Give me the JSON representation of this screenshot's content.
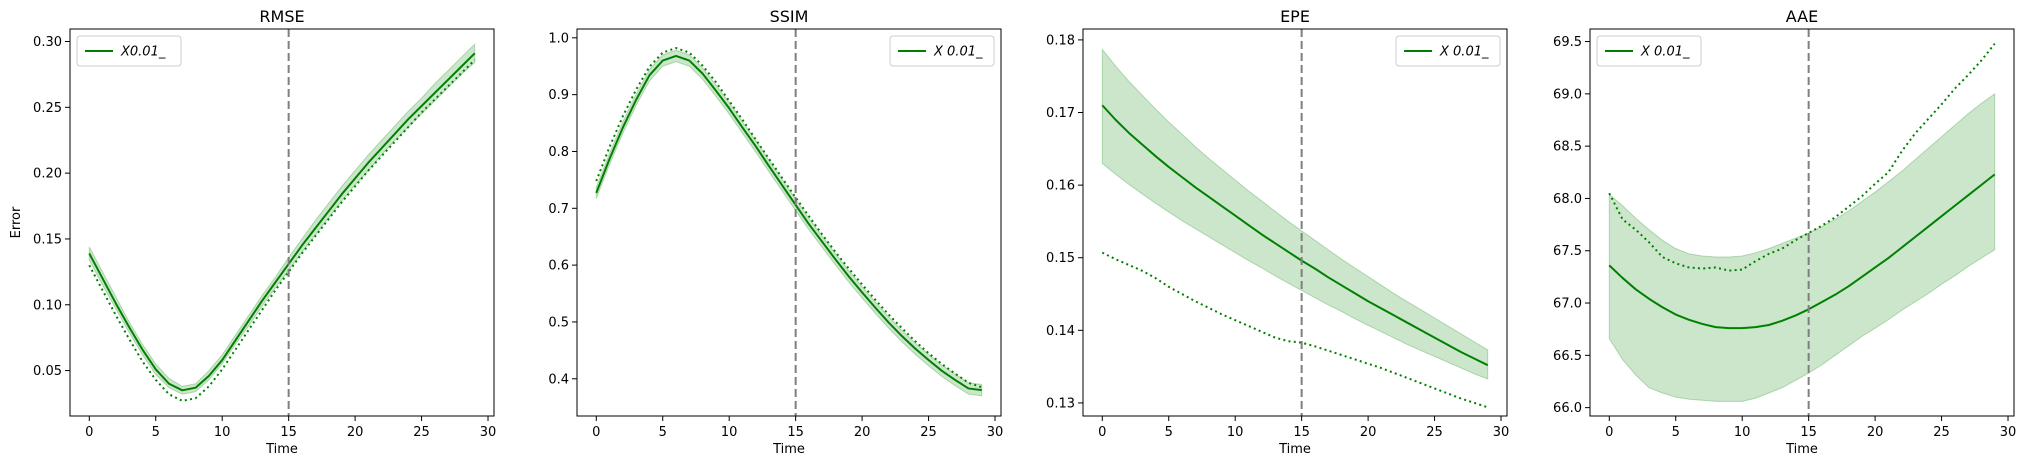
{
  "chart_data": [
    {
      "type": "line",
      "title": "RMSE",
      "xlabel": "Time",
      "ylabel": "Error",
      "xlim": [
        -1.45,
        30.45
      ],
      "ylim": [
        0.0155,
        0.3095
      ],
      "xticks": [
        0,
        5,
        10,
        15,
        20,
        25,
        30
      ],
      "xtick_labels": [
        "0",
        "5",
        "10",
        "15",
        "20",
        "25",
        "30"
      ],
      "yticks": [
        0.05,
        0.1,
        0.15,
        0.2,
        0.25,
        0.3
      ],
      "ytick_labels": [
        "0.05",
        "0.10",
        "0.15",
        "0.20",
        "0.25",
        "0.30"
      ],
      "vline_x": 15,
      "legend": {
        "label": "X0.01_",
        "position": "upper-left"
      },
      "x": [
        0,
        1,
        2,
        3,
        4,
        5,
        6,
        7,
        8,
        9,
        10,
        11,
        12,
        13,
        14,
        15,
        16,
        17,
        18,
        19,
        20,
        21,
        22,
        23,
        24,
        25,
        26,
        27,
        28,
        29
      ],
      "series": [
        {
          "style": "solid",
          "values": [
            0.139,
            0.12,
            0.101,
            0.083,
            0.066,
            0.051,
            0.04,
            0.035,
            0.037,
            0.046,
            0.058,
            0.073,
            0.088,
            0.103,
            0.117,
            0.131,
            0.145,
            0.158,
            0.171,
            0.184,
            0.196,
            0.208,
            0.219,
            0.23,
            0.241,
            0.251,
            0.261,
            0.271,
            0.281,
            0.291
          ]
        },
        {
          "style": "dotted",
          "values": [
            0.13,
            0.111,
            0.092,
            0.074,
            0.057,
            0.043,
            0.032,
            0.027,
            0.029,
            0.038,
            0.051,
            0.066,
            0.081,
            0.096,
            0.111,
            0.125,
            0.139,
            0.152,
            0.165,
            0.178,
            0.19,
            0.202,
            0.213,
            0.224,
            0.235,
            0.246,
            0.256,
            0.266,
            0.276,
            0.286
          ]
        }
      ],
      "band": {
        "lower": [
          0.134,
          0.115,
          0.097,
          0.079,
          0.062,
          0.047,
          0.037,
          0.032,
          0.034,
          0.043,
          0.055,
          0.07,
          0.084,
          0.099,
          0.113,
          0.126,
          0.14,
          0.153,
          0.166,
          0.179,
          0.191,
          0.202,
          0.214,
          0.225,
          0.235,
          0.245,
          0.255,
          0.265,
          0.275,
          0.284
        ],
        "upper": [
          0.144,
          0.125,
          0.106,
          0.087,
          0.07,
          0.055,
          0.044,
          0.038,
          0.04,
          0.05,
          0.062,
          0.077,
          0.092,
          0.107,
          0.121,
          0.136,
          0.15,
          0.164,
          0.177,
          0.19,
          0.202,
          0.214,
          0.225,
          0.236,
          0.247,
          0.257,
          0.268,
          0.278,
          0.288,
          0.298
        ]
      }
    },
    {
      "type": "line",
      "title": "SSIM",
      "xlabel": "Time",
      "ylabel": "",
      "xlim": [
        -1.45,
        30.45
      ],
      "ylim": [
        0.3345,
        1.0155
      ],
      "xticks": [
        0,
        5,
        10,
        15,
        20,
        25,
        30
      ],
      "xtick_labels": [
        "0",
        "5",
        "10",
        "15",
        "20",
        "25",
        "30"
      ],
      "yticks": [
        0.4,
        0.5,
        0.6,
        0.7,
        0.8,
        0.9,
        1.0
      ],
      "ytick_labels": [
        "0.4",
        "0.5",
        "0.6",
        "0.7",
        "0.8",
        "0.9",
        "1.0"
      ],
      "vline_x": 15,
      "legend": {
        "label": "X 0.01_",
        "position": "upper-right"
      },
      "x": [
        0,
        1,
        2,
        3,
        4,
        5,
        6,
        7,
        8,
        9,
        10,
        11,
        12,
        13,
        14,
        15,
        16,
        17,
        18,
        19,
        20,
        21,
        22,
        23,
        24,
        25,
        26,
        27,
        28,
        29
      ],
      "series": [
        {
          "style": "solid",
          "values": [
            0.727,
            0.787,
            0.842,
            0.891,
            0.934,
            0.96,
            0.968,
            0.96,
            0.937,
            0.907,
            0.876,
            0.842,
            0.809,
            0.774,
            0.74,
            0.706,
            0.672,
            0.641,
            0.61,
            0.58,
            0.552,
            0.525,
            0.499,
            0.475,
            0.453,
            0.433,
            0.414,
            0.398,
            0.383,
            0.38
          ]
        },
        {
          "style": "dotted",
          "values": [
            0.748,
            0.808,
            0.862,
            0.909,
            0.949,
            0.974,
            0.982,
            0.974,
            0.951,
            0.922,
            0.889,
            0.856,
            0.821,
            0.787,
            0.753,
            0.719,
            0.686,
            0.654,
            0.623,
            0.594,
            0.566,
            0.539,
            0.513,
            0.489,
            0.466,
            0.445,
            0.426,
            0.409,
            0.393,
            0.385
          ]
        }
      ],
      "band": {
        "lower": [
          0.717,
          0.777,
          0.832,
          0.881,
          0.924,
          0.95,
          0.958,
          0.95,
          0.927,
          0.897,
          0.866,
          0.832,
          0.799,
          0.764,
          0.73,
          0.696,
          0.662,
          0.631,
          0.6,
          0.57,
          0.542,
          0.515,
          0.489,
          0.465,
          0.443,
          0.423,
          0.404,
          0.388,
          0.373,
          0.37
        ],
        "upper": [
          0.737,
          0.797,
          0.852,
          0.901,
          0.944,
          0.97,
          0.978,
          0.97,
          0.947,
          0.917,
          0.886,
          0.852,
          0.819,
          0.784,
          0.75,
          0.716,
          0.682,
          0.651,
          0.62,
          0.59,
          0.562,
          0.535,
          0.509,
          0.485,
          0.463,
          0.443,
          0.424,
          0.408,
          0.393,
          0.39
        ]
      }
    },
    {
      "type": "line",
      "title": "EPE",
      "xlabel": "Time",
      "ylabel": "",
      "xlim": [
        -1.45,
        30.45
      ],
      "ylim": [
        0.1282,
        0.1815
      ],
      "xticks": [
        0,
        5,
        10,
        15,
        20,
        25,
        30
      ],
      "xtick_labels": [
        "0",
        "5",
        "10",
        "15",
        "20",
        "25",
        "30"
      ],
      "yticks": [
        0.13,
        0.14,
        0.15,
        0.16,
        0.17,
        0.18
      ],
      "ytick_labels": [
        "0.13",
        "0.14",
        "0.15",
        "0.16",
        "0.17",
        "0.18"
      ],
      "vline_x": 15,
      "legend": {
        "label": "X 0.01_",
        "position": "upper-right"
      },
      "x": [
        0,
        1,
        2,
        3,
        4,
        5,
        6,
        7,
        8,
        9,
        10,
        11,
        12,
        13,
        14,
        15,
        16,
        17,
        18,
        19,
        20,
        21,
        22,
        23,
        24,
        25,
        26,
        27,
        28,
        29
      ],
      "series": [
        {
          "style": "solid",
          "values": [
            0.171,
            0.169,
            0.1672,
            0.1656,
            0.164,
            0.1625,
            0.1611,
            0.1597,
            0.1584,
            0.1571,
            0.1558,
            0.1545,
            0.1532,
            0.152,
            0.1508,
            0.1496,
            0.1485,
            0.1473,
            0.1462,
            0.1451,
            0.144,
            0.143,
            0.142,
            0.141,
            0.14,
            0.139,
            0.138,
            0.137,
            0.1361,
            0.1352
          ]
        },
        {
          "style": "dotted",
          "values": [
            0.1507,
            0.1498,
            0.149,
            0.1482,
            0.1472,
            0.146,
            0.145,
            0.144,
            0.1431,
            0.1422,
            0.1414,
            0.1406,
            0.1398,
            0.139,
            0.1385,
            0.1383,
            0.1378,
            0.1372,
            0.1366,
            0.136,
            0.1354,
            0.1348,
            0.1341,
            0.1334,
            0.1327,
            0.132,
            0.1313,
            0.1306,
            0.13,
            0.1294
          ]
        }
      ],
      "band": {
        "lower": [
          0.163,
          0.1615,
          0.1601,
          0.1588,
          0.1575,
          0.1563,
          0.1551,
          0.154,
          0.1529,
          0.1518,
          0.1507,
          0.1496,
          0.1486,
          0.1475,
          0.1465,
          0.1455,
          0.1445,
          0.1435,
          0.1426,
          0.1416,
          0.1407,
          0.1398,
          0.1389,
          0.138,
          0.1372,
          0.1364,
          0.1356,
          0.1348,
          0.134,
          0.1333
        ],
        "upper": [
          0.1787,
          0.1764,
          0.1743,
          0.1724,
          0.1705,
          0.1687,
          0.167,
          0.1653,
          0.1637,
          0.1622,
          0.1607,
          0.1592,
          0.1578,
          0.1564,
          0.155,
          0.1537,
          0.1524,
          0.1511,
          0.1498,
          0.1486,
          0.1474,
          0.1462,
          0.145,
          0.1439,
          0.1428,
          0.1417,
          0.1406,
          0.1395,
          0.1384,
          0.1373
        ]
      }
    },
    {
      "type": "line",
      "title": "AAE",
      "xlabel": "Time",
      "ylabel": "",
      "xlim": [
        -1.45,
        30.45
      ],
      "ylim": [
        65.92,
        69.62
      ],
      "xticks": [
        0,
        5,
        10,
        15,
        20,
        25,
        30
      ],
      "xtick_labels": [
        "0",
        "5",
        "10",
        "15",
        "20",
        "25",
        "30"
      ],
      "yticks": [
        66.0,
        66.5,
        67.0,
        67.5,
        68.0,
        68.5,
        69.0,
        69.5
      ],
      "ytick_labels": [
        "66.0",
        "66.5",
        "67.0",
        "67.5",
        "68.0",
        "68.5",
        "69.0",
        "69.5"
      ],
      "vline_x": 15,
      "legend": {
        "label": "X 0.01_",
        "position": "upper-left"
      },
      "x": [
        0,
        1,
        2,
        3,
        4,
        5,
        6,
        7,
        8,
        9,
        10,
        11,
        12,
        13,
        14,
        15,
        16,
        17,
        18,
        19,
        20,
        21,
        22,
        23,
        24,
        25,
        26,
        27,
        28,
        29
      ],
      "series": [
        {
          "style": "solid",
          "values": [
            67.36,
            67.24,
            67.13,
            67.04,
            66.96,
            66.89,
            66.84,
            66.8,
            66.77,
            66.76,
            66.76,
            66.77,
            66.79,
            66.83,
            66.88,
            66.94,
            67.01,
            67.08,
            67.16,
            67.25,
            67.34,
            67.43,
            67.53,
            67.63,
            67.73,
            67.83,
            67.93,
            68.03,
            68.13,
            68.23
          ]
        },
        {
          "style": "dotted",
          "values": [
            68.05,
            67.8,
            67.7,
            67.58,
            67.44,
            67.38,
            67.34,
            67.33,
            67.34,
            67.31,
            67.32,
            67.4,
            67.47,
            67.52,
            67.6,
            67.67,
            67.74,
            67.82,
            67.92,
            68.02,
            68.14,
            68.25,
            68.45,
            68.62,
            68.76,
            68.9,
            69.05,
            69.18,
            69.32,
            69.48
          ]
        }
      ],
      "band": {
        "lower": [
          66.66,
          66.46,
          66.31,
          66.19,
          66.14,
          66.1,
          66.08,
          66.07,
          66.06,
          66.06,
          66.06,
          66.09,
          66.14,
          66.19,
          66.26,
          66.33,
          66.41,
          66.5,
          66.59,
          66.68,
          66.76,
          66.84,
          66.93,
          67.01,
          67.09,
          67.18,
          67.26,
          67.35,
          67.43,
          67.51
        ],
        "upper": [
          68.04,
          67.93,
          67.81,
          67.7,
          67.6,
          67.52,
          67.47,
          67.45,
          67.44,
          67.44,
          67.45,
          67.48,
          67.52,
          67.57,
          67.62,
          67.67,
          67.73,
          67.8,
          67.88,
          67.97,
          68.06,
          68.16,
          68.26,
          68.37,
          68.48,
          68.59,
          68.7,
          68.81,
          68.91,
          69.0
        ]
      }
    }
  ]
}
